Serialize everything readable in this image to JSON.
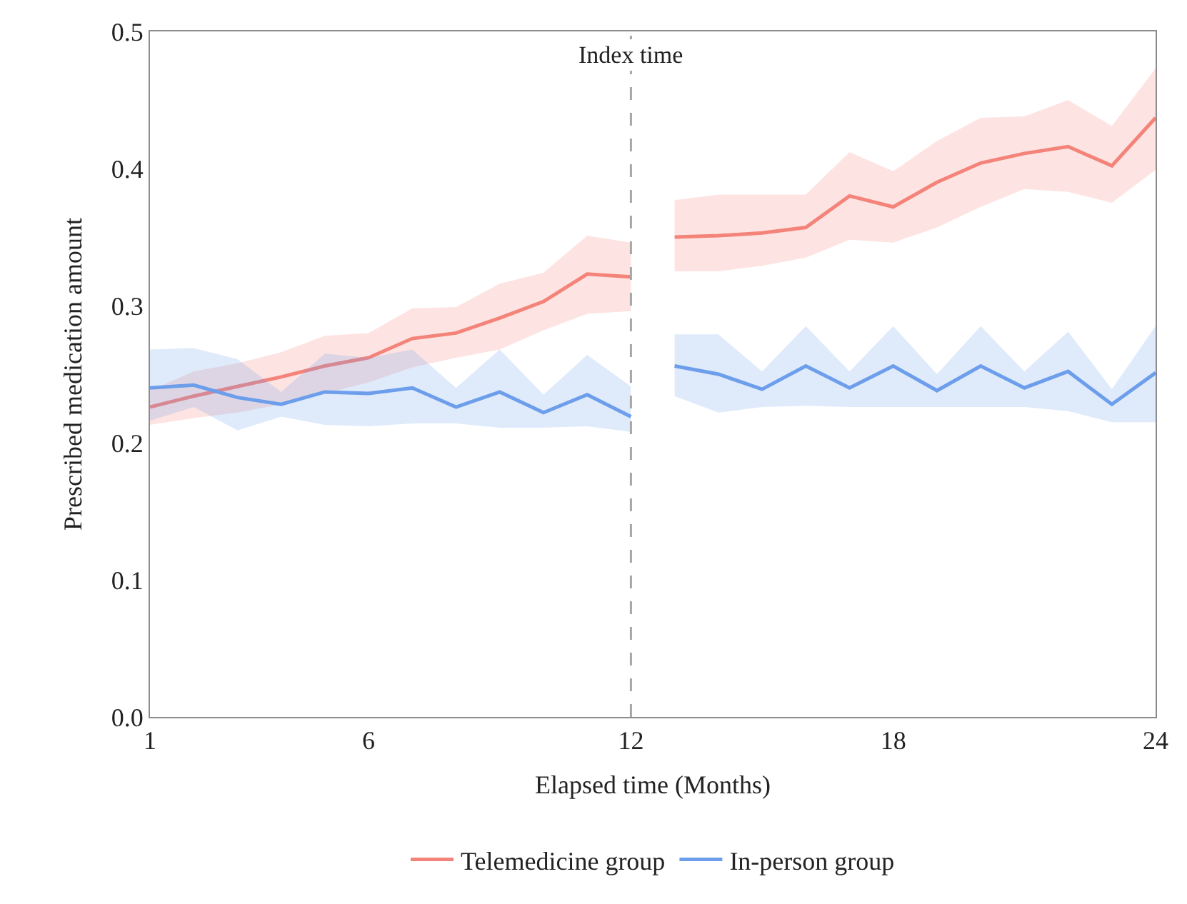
{
  "chart_data": {
    "type": "line",
    "xlabel": "Elapsed time (Months)",
    "ylabel": "Prescribed medication amount",
    "x": [
      1,
      2,
      3,
      4,
      5,
      6,
      7,
      8,
      9,
      10,
      11,
      12,
      12.5,
      13,
      14,
      15,
      16,
      17,
      18,
      19,
      20,
      21,
      22,
      23,
      24
    ],
    "series": [
      {
        "name": "Telemedicine group",
        "color": "#f4837a",
        "values": [
          0.226,
          0.234,
          0.241,
          0.248,
          0.256,
          0.262,
          0.276,
          0.28,
          0.291,
          0.303,
          0.323,
          0.321,
          null,
          0.35,
          0.351,
          0.353,
          0.357,
          0.38,
          0.372,
          0.39,
          0.404,
          0.411,
          0.416,
          0.402,
          0.437
        ],
        "lower": [
          0.213,
          0.218,
          0.222,
          0.228,
          0.236,
          0.244,
          0.255,
          0.262,
          0.268,
          0.282,
          0.294,
          0.296,
          null,
          0.325,
          0.325,
          0.329,
          0.335,
          0.348,
          0.346,
          0.357,
          0.372,
          0.385,
          0.383,
          0.375,
          0.399
        ],
        "upper": [
          0.238,
          0.252,
          0.258,
          0.266,
          0.278,
          0.28,
          0.298,
          0.299,
          0.316,
          0.324,
          0.351,
          0.346,
          null,
          0.377,
          0.381,
          0.381,
          0.381,
          0.412,
          0.398,
          0.42,
          0.437,
          0.438,
          0.45,
          0.431,
          0.473
        ]
      },
      {
        "name": "In-person group",
        "color": "#6d9eeb",
        "values": [
          0.24,
          0.242,
          0.233,
          0.228,
          0.237,
          0.236,
          0.24,
          0.226,
          0.237,
          0.222,
          0.235,
          0.219,
          null,
          0.256,
          0.25,
          0.239,
          0.256,
          0.24,
          0.256,
          0.238,
          0.256,
          0.24,
          0.252,
          0.228,
          0.251
        ],
        "lower": [
          0.216,
          0.226,
          0.209,
          0.219,
          0.213,
          0.212,
          0.214,
          0.214,
          0.211,
          0.211,
          0.212,
          0.208,
          null,
          0.234,
          0.222,
          0.226,
          0.227,
          0.226,
          0.226,
          0.226,
          0.226,
          0.226,
          0.223,
          0.215,
          0.215
        ],
        "upper": [
          0.268,
          0.269,
          0.261,
          0.237,
          0.265,
          0.262,
          0.268,
          0.24,
          0.268,
          0.235,
          0.264,
          0.241,
          null,
          0.279,
          0.279,
          0.252,
          0.285,
          0.252,
          0.285,
          0.25,
          0.285,
          0.252,
          0.281,
          0.239,
          0.285
        ]
      }
    ],
    "xlim": [
      1,
      24
    ],
    "xticks": [
      1,
      6,
      12,
      18,
      24
    ],
    "ylim": [
      0,
      0.5
    ],
    "yticks": [
      {
        "value": 0,
        "label": "0.0"
      },
      0.1,
      0.2,
      0.3,
      0.4,
      0.5
    ],
    "ref_lines": [
      {
        "axis": "x",
        "value": 12,
        "label": "Index time",
        "color": "#a6a6a6",
        "line_style": "dashed"
      }
    ],
    "legend": "bottom",
    "grid": false,
    "marker": "none",
    "line_style": "solid"
  }
}
